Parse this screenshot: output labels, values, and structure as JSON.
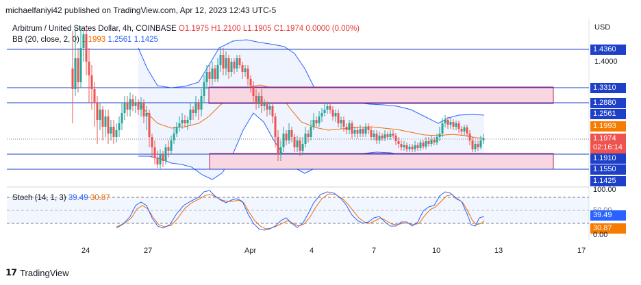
{
  "header": "michaelfaniyi42 published on TradingView.com, Apr 12, 2023 12:43 UTC-5",
  "legend": {
    "symbol": "Arbitrum / United States Dollar, 4h, COINBASE",
    "open": "O1.1975",
    "high": "H1.2100",
    "low": "L1.1905",
    "close": "C1.1974",
    "change": "0.0000 (0.00%)",
    "bb_label": "BB (20, close, 2, 0)",
    "bb_basis": "1.1993",
    "bb_upper": "1.2561",
    "bb_lower": "1.1425"
  },
  "currency": "USD",
  "price_axis": {
    "labels": [
      "1.4360",
      "1.4000",
      "1.3310",
      "1.2880",
      "1.2561",
      "1.1993",
      "1.1974",
      "02:16:14",
      "1.1910",
      "1.1550",
      "1.1425"
    ]
  },
  "stoch": {
    "label": "Stoch (14, 1, 3)",
    "k": "39.49",
    "d": "30.87",
    "axis": [
      "100.00",
      "50.00",
      "0.00"
    ]
  },
  "time_axis": [
    "24",
    "27",
    "Apr",
    "4",
    "7",
    "10",
    "13",
    "17"
  ],
  "footer": {
    "brand": "TradingView"
  },
  "colors": {
    "up": "#26a69a",
    "down": "#ef5350",
    "bb_band": "#2962ff",
    "basis": "#ef6c00",
    "resistance_zone": "#f8d7e1",
    "level_line": "#1e40c8"
  }
}
